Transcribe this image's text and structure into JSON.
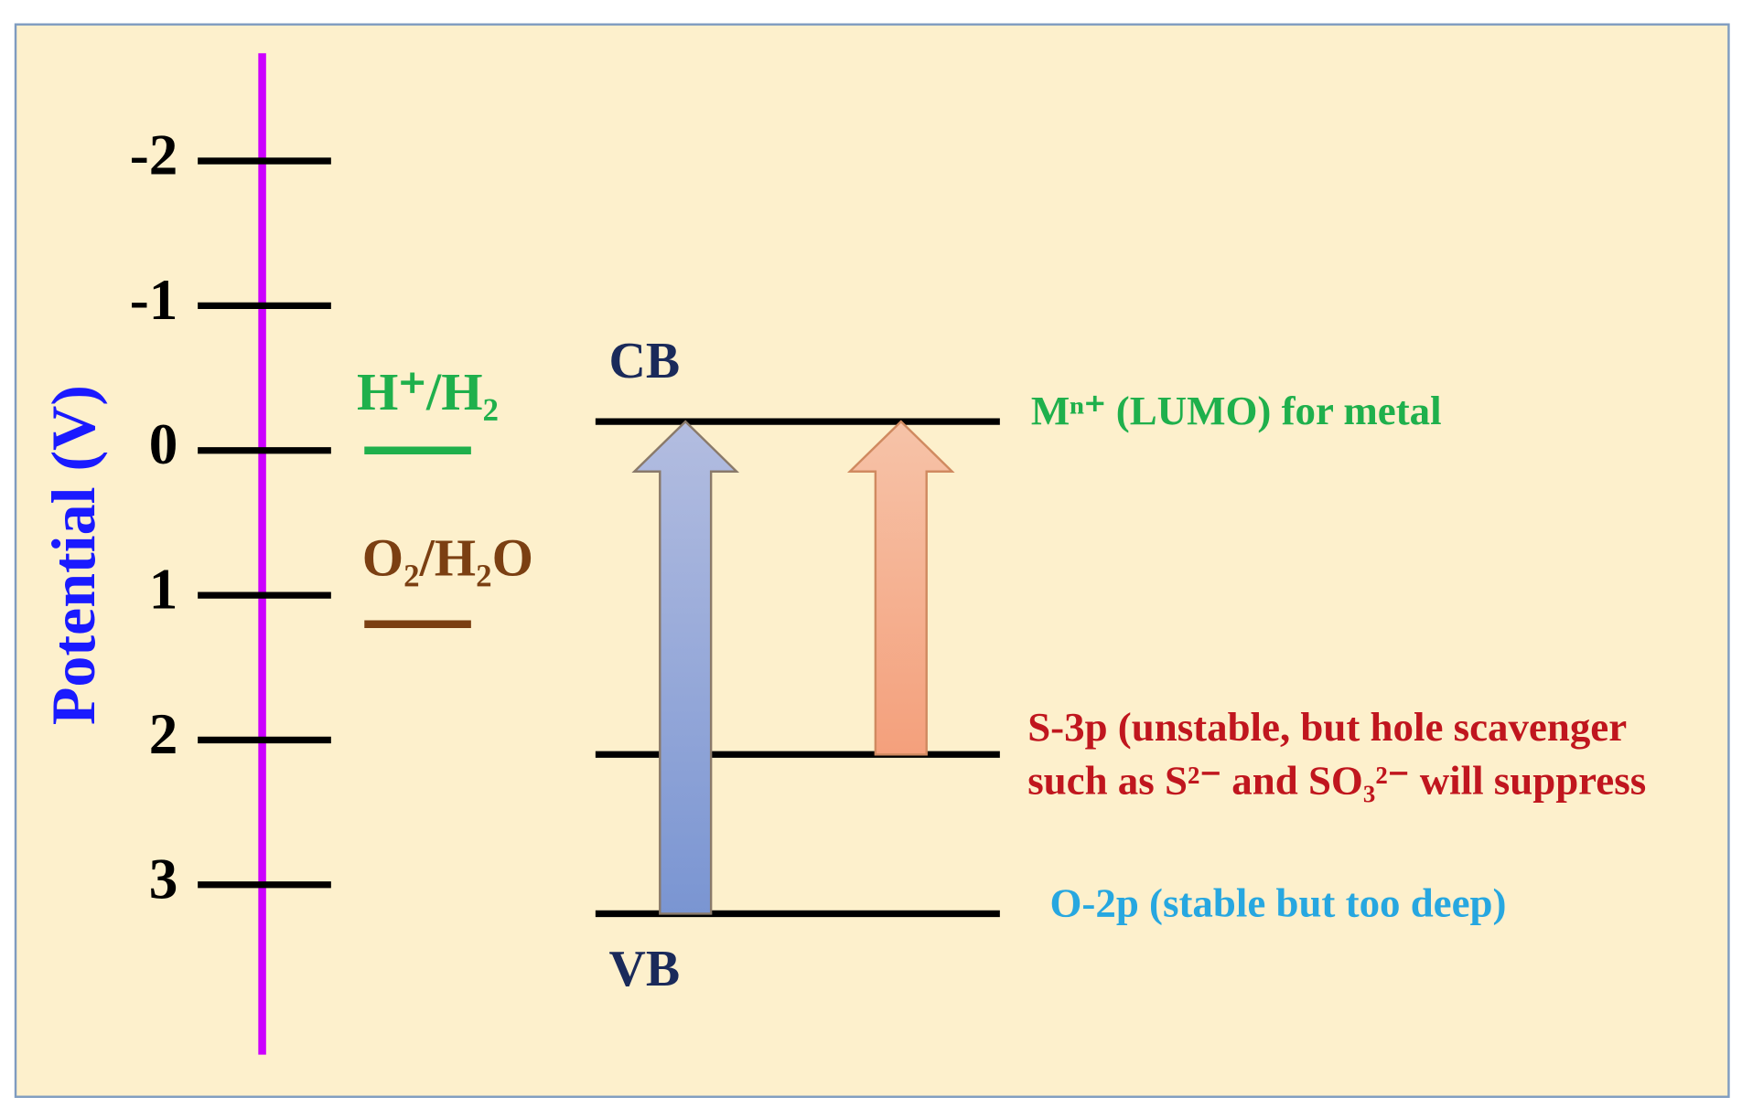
{
  "axis": {
    "label": "Potential (V)",
    "ticks": [
      -2,
      -1,
      0,
      1,
      2,
      3
    ]
  },
  "redox_couples": [
    {
      "label": "H⁺/H₂",
      "potential": 0,
      "color": "#1fb04c"
    },
    {
      "label": "O₂/H₂O",
      "potential": 1.2,
      "color": "#7b3f12"
    }
  ],
  "band_labels": {
    "cb": "CB",
    "vb": "VB"
  },
  "levels": [
    {
      "lines": [
        "Mⁿ⁺ (LUMO) for metal"
      ],
      "potential": -0.2,
      "color": "#1fb04c"
    },
    {
      "lines": [
        "S-3p (unstable, but hole scavenger",
        "such as S²⁻ and SO₃²⁻ will suppress"
      ],
      "potential": 2.1,
      "color": "#c0161e"
    },
    {
      "lines": [
        "O-2p (stable but too deep)"
      ],
      "potential": 3.2,
      "color": "#27a7e0"
    }
  ]
}
